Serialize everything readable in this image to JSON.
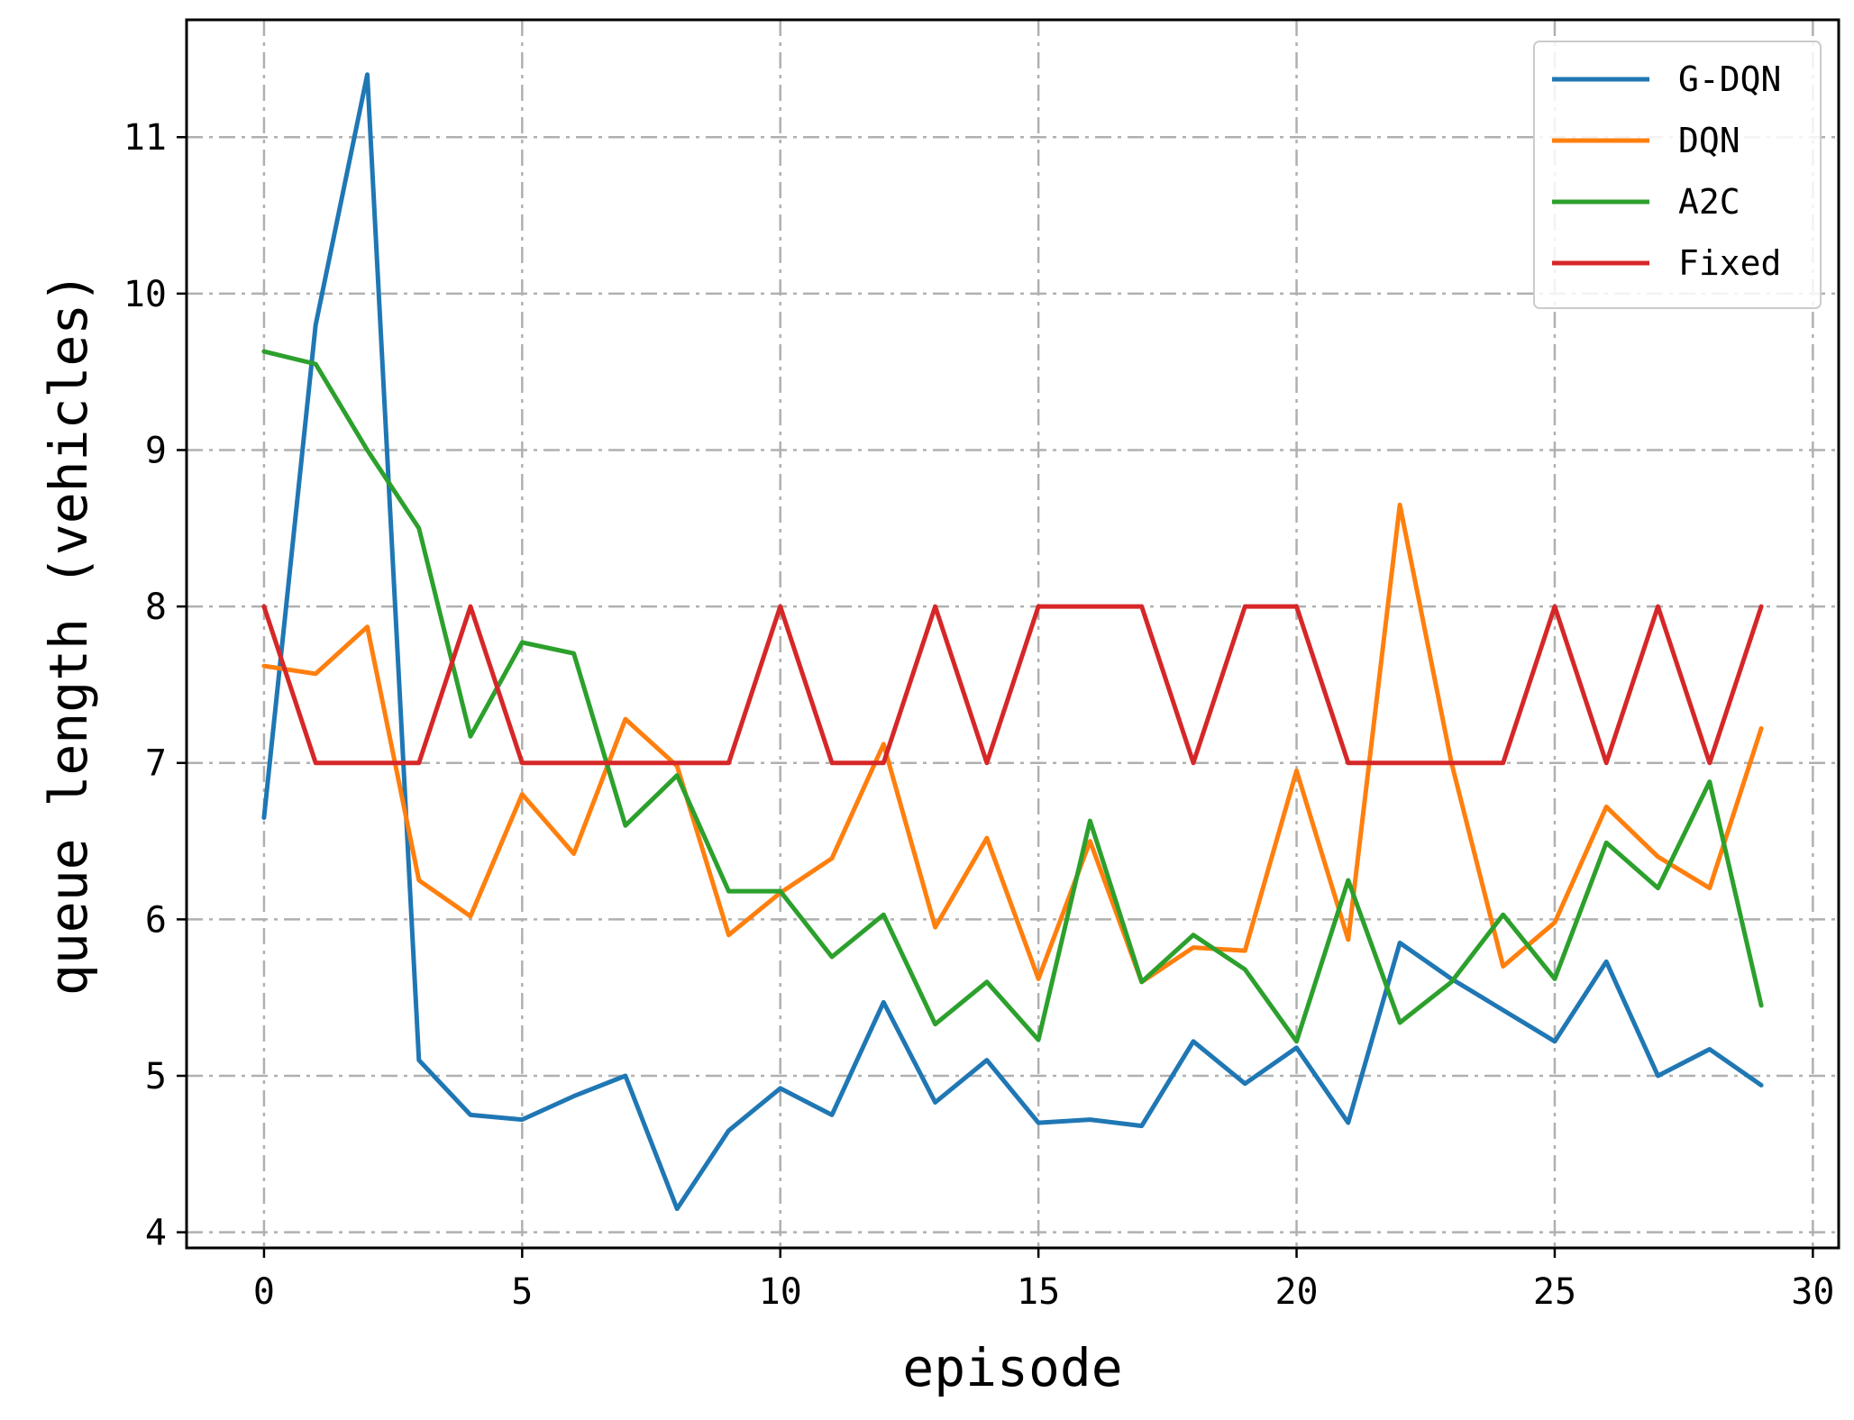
{
  "chart_data": {
    "type": "line",
    "xlabel": "episode",
    "ylabel": "queue length (vehicles)",
    "xlim": [
      -1.5,
      30.5
    ],
    "ylim": [
      3.9,
      11.75
    ],
    "x_ticks": [
      0,
      5,
      10,
      15,
      20,
      25,
      30
    ],
    "y_ticks": [
      4,
      5,
      6,
      7,
      8,
      9,
      10,
      11
    ],
    "grid": true,
    "legend_position": "top-right",
    "x": [
      0,
      1,
      2,
      3,
      4,
      5,
      6,
      7,
      8,
      9,
      10,
      11,
      12,
      13,
      14,
      15,
      16,
      17,
      18,
      19,
      20,
      21,
      22,
      23,
      24,
      25,
      26,
      27,
      28,
      29
    ],
    "series": [
      {
        "name": "G-DQN",
        "color": "#1f77b4",
        "values": [
          6.65,
          9.8,
          11.4,
          5.1,
          4.75,
          4.72,
          4.87,
          5.0,
          4.15,
          4.65,
          4.92,
          4.75,
          5.47,
          4.83,
          5.1,
          4.7,
          4.72,
          4.68,
          5.22,
          4.95,
          5.18,
          4.7,
          5.85,
          5.62,
          5.42,
          5.22,
          5.73,
          5.0,
          5.17,
          4.94
        ]
      },
      {
        "name": "DQN",
        "color": "#ff7f0e",
        "values": [
          7.62,
          7.57,
          7.87,
          6.25,
          6.02,
          6.8,
          6.42,
          7.28,
          6.98,
          5.9,
          6.17,
          6.39,
          7.12,
          5.95,
          6.52,
          5.62,
          6.5,
          5.6,
          5.82,
          5.8,
          6.95,
          5.87,
          8.65,
          7.0,
          5.7,
          5.98,
          6.72,
          6.4,
          6.2,
          7.22
        ]
      },
      {
        "name": "A2C",
        "color": "#2ca02c",
        "values": [
          9.63,
          9.55,
          9.0,
          8.5,
          7.17,
          7.77,
          7.7,
          6.6,
          6.92,
          6.18,
          6.18,
          5.76,
          6.03,
          5.33,
          5.6,
          5.23,
          6.63,
          5.6,
          5.9,
          5.68,
          5.22,
          6.25,
          5.34,
          5.6,
          6.03,
          5.62,
          6.49,
          6.2,
          6.88,
          5.45
        ]
      },
      {
        "name": "Fixed",
        "color": "#d62728",
        "values": [
          8,
          7,
          7,
          7,
          8,
          7,
          7,
          7,
          7,
          7,
          8,
          7,
          7,
          8,
          7,
          8,
          8,
          8,
          7,
          8,
          8,
          7,
          7,
          7,
          7,
          8,
          7,
          8,
          7,
          8
        ]
      }
    ]
  }
}
